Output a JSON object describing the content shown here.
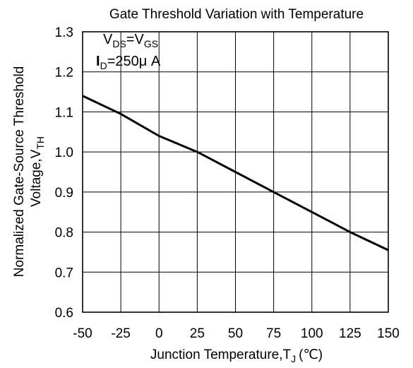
{
  "chart_data": {
    "type": "line",
    "title": "Gate Threshold Variation with Temperature",
    "xlabel": "Junction Temperature,T",
    "xlabel_sub": "J",
    "xlabel_unit": "(℃)",
    "ylabel_line1": "Normalized Gate-Source Threshold",
    "ylabel_line2": "Voltage,V",
    "ylabel_sub": "TH",
    "xlim": [
      -50,
      150
    ],
    "ylim": [
      0.6,
      1.3
    ],
    "x_ticks": [
      -50,
      -25,
      0,
      25,
      50,
      75,
      100,
      125,
      150
    ],
    "y_ticks": [
      "0.6",
      "0.7",
      "0.8",
      "0.9",
      "1.0",
      "1.1",
      "1.2",
      "1.3"
    ],
    "grid": true,
    "annotations": {
      "vds_main": "V",
      "vds_sub": "DS",
      "vds_eq": "=V",
      "vgs_sub": "GS",
      "id_main": "I",
      "id_sub": "D",
      "id_value": "=250μ A"
    },
    "series": [
      {
        "x": [
          -50,
          -25,
          0,
          25,
          50,
          75,
          100,
          125,
          150
        ],
        "y": [
          1.14,
          1.095,
          1.04,
          1.0,
          0.95,
          0.9,
          0.85,
          0.8,
          0.755
        ]
      }
    ]
  }
}
